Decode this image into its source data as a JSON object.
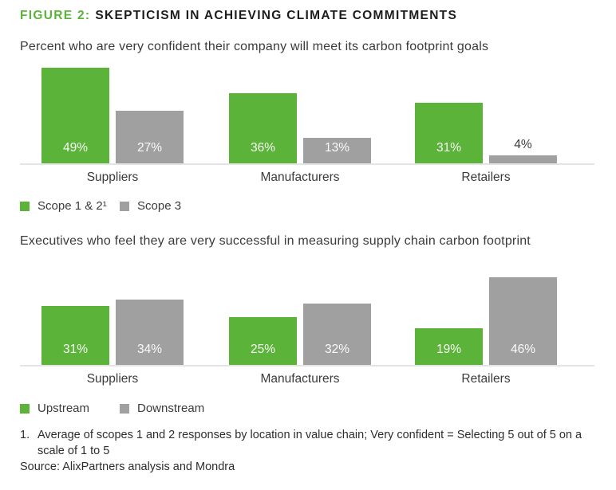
{
  "header": {
    "figure_label": "FIGURE 2:",
    "title": "SKEPTICISM IN ACHIEVING CLIMATE COMMITMENTS"
  },
  "colors": {
    "green": "#5cb33a",
    "gray": "#a0a0a0",
    "axis": "#e4e4e4"
  },
  "chart_data": [
    {
      "type": "bar",
      "title": "Percent who are very confident their company will meet its carbon footprint goals",
      "categories": [
        "Suppliers",
        "Manufacturers",
        "Retailers"
      ],
      "series": [
        {
          "name": "Scope 1 & 2¹",
          "color": "green",
          "values": [
            49,
            36,
            31
          ]
        },
        {
          "name": "Scope 3",
          "color": "gray",
          "values": [
            27,
            13,
            4
          ]
        }
      ],
      "value_suffix": "%",
      "value_labels": "inside-bottom, outside when bar too short",
      "legend_position": "bottom-left",
      "grid": false,
      "ylim": [
        0,
        50
      ]
    },
    {
      "type": "bar",
      "title": "Executives who feel they are very successful in measuring supply chain carbon footprint",
      "categories": [
        "Suppliers",
        "Manufacturers",
        "Retailers"
      ],
      "series": [
        {
          "name": "Upstream",
          "color": "green",
          "values": [
            31,
            25,
            19
          ]
        },
        {
          "name": "Downstream",
          "color": "gray",
          "values": [
            34,
            32,
            46
          ]
        }
      ],
      "value_suffix": "%",
      "value_labels": "inside-bottom",
      "legend_position": "bottom-left",
      "grid": false,
      "ylim": [
        0,
        48
      ]
    }
  ],
  "footnote": {
    "marker": "1.",
    "text": "Average of scopes 1 and 2 responses by location in value chain; Very confident = Selecting 5 out of 5 on a scale of 1 to 5"
  },
  "source": "Source: AlixPartners analysis and Mondra"
}
